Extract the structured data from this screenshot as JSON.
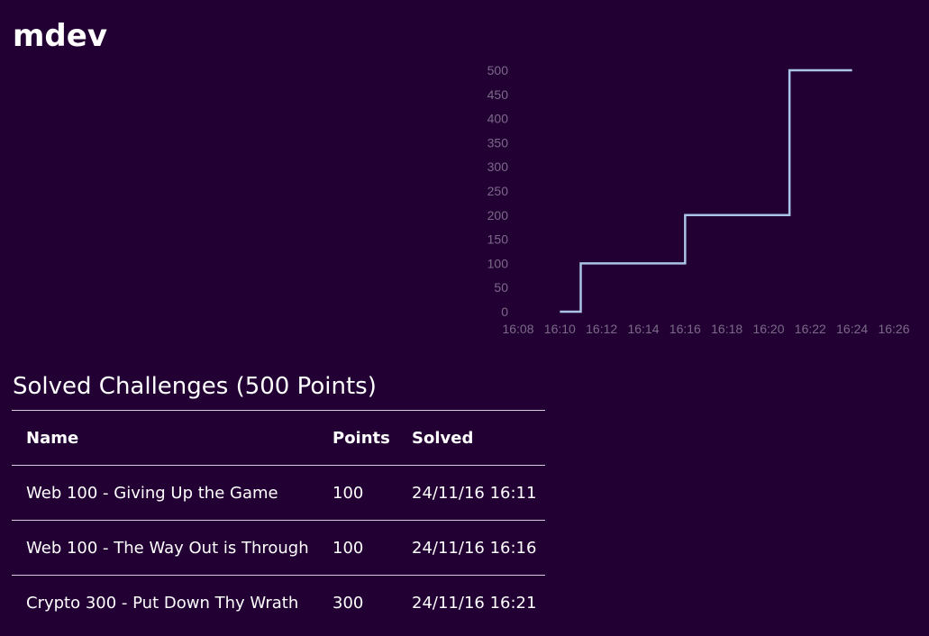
{
  "user": {
    "name": "mdev"
  },
  "solved": {
    "heading": "Solved Challenges (500 Points)",
    "columns": [
      "Name",
      "Points",
      "Solved"
    ],
    "rows": [
      {
        "name": "Web 100 - Giving Up the Game",
        "points": "100",
        "solved": "24/11/16 16:11"
      },
      {
        "name": "Web 100 - The Way Out is Through",
        "points": "100",
        "solved": "24/11/16 16:16"
      },
      {
        "name": "Crypto 300 - Put Down Thy Wrath",
        "points": "300",
        "solved": "24/11/16 16:21"
      }
    ]
  },
  "chart_data": {
    "type": "line",
    "step": true,
    "title": "",
    "xlabel": "",
    "ylabel": "",
    "x_ticks": [
      "16:08",
      "16:10",
      "16:12",
      "16:14",
      "16:16",
      "16:18",
      "16:20",
      "16:22",
      "16:24",
      "16:26"
    ],
    "y_ticks": [
      0,
      50,
      100,
      150,
      200,
      250,
      300,
      350,
      400,
      450,
      500
    ],
    "ylim": [
      0,
      500
    ],
    "xlim": [
      "16:08",
      "16:26"
    ],
    "grid": false,
    "series": [
      {
        "x": [
          "16:10",
          "16:11",
          "16:16",
          "16:21",
          "16:24"
        ],
        "y": [
          0,
          100,
          200,
          500,
          500
        ]
      }
    ],
    "colors": {
      "line": "#a9c4e6",
      "axis_text": "#7a6a88"
    }
  }
}
